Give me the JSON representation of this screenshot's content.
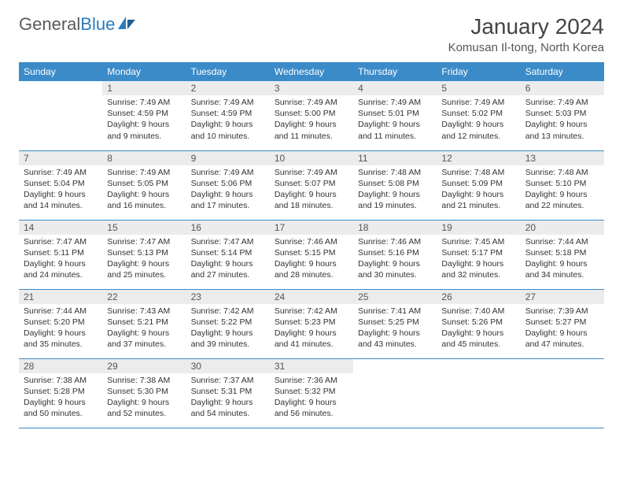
{
  "brand": {
    "part1": "General",
    "part2": "Blue"
  },
  "colors": {
    "header_bg": "#3b8bc9",
    "header_text": "#ffffff",
    "daynum_bg": "#ececec",
    "border": "#3b8bc9",
    "brand_gray": "#5a5a5a",
    "brand_blue": "#2b7bbf"
  },
  "title": "January 2024",
  "location": "Komusan Il-tong, North Korea",
  "weekdays": [
    "Sunday",
    "Monday",
    "Tuesday",
    "Wednesday",
    "Thursday",
    "Friday",
    "Saturday"
  ],
  "labels": {
    "sunrise": "Sunrise:",
    "sunset": "Sunset:",
    "daylight": "Daylight:"
  },
  "weeks": [
    [
      null,
      {
        "n": "1",
        "sr": "7:49 AM",
        "ss": "4:59 PM",
        "dl": "9 hours and 9 minutes."
      },
      {
        "n": "2",
        "sr": "7:49 AM",
        "ss": "4:59 PM",
        "dl": "9 hours and 10 minutes."
      },
      {
        "n": "3",
        "sr": "7:49 AM",
        "ss": "5:00 PM",
        "dl": "9 hours and 11 minutes."
      },
      {
        "n": "4",
        "sr": "7:49 AM",
        "ss": "5:01 PM",
        "dl": "9 hours and 11 minutes."
      },
      {
        "n": "5",
        "sr": "7:49 AM",
        "ss": "5:02 PM",
        "dl": "9 hours and 12 minutes."
      },
      {
        "n": "6",
        "sr": "7:49 AM",
        "ss": "5:03 PM",
        "dl": "9 hours and 13 minutes."
      }
    ],
    [
      {
        "n": "7",
        "sr": "7:49 AM",
        "ss": "5:04 PM",
        "dl": "9 hours and 14 minutes."
      },
      {
        "n": "8",
        "sr": "7:49 AM",
        "ss": "5:05 PM",
        "dl": "9 hours and 16 minutes."
      },
      {
        "n": "9",
        "sr": "7:49 AM",
        "ss": "5:06 PM",
        "dl": "9 hours and 17 minutes."
      },
      {
        "n": "10",
        "sr": "7:49 AM",
        "ss": "5:07 PM",
        "dl": "9 hours and 18 minutes."
      },
      {
        "n": "11",
        "sr": "7:48 AM",
        "ss": "5:08 PM",
        "dl": "9 hours and 19 minutes."
      },
      {
        "n": "12",
        "sr": "7:48 AM",
        "ss": "5:09 PM",
        "dl": "9 hours and 21 minutes."
      },
      {
        "n": "13",
        "sr": "7:48 AM",
        "ss": "5:10 PM",
        "dl": "9 hours and 22 minutes."
      }
    ],
    [
      {
        "n": "14",
        "sr": "7:47 AM",
        "ss": "5:11 PM",
        "dl": "9 hours and 24 minutes."
      },
      {
        "n": "15",
        "sr": "7:47 AM",
        "ss": "5:13 PM",
        "dl": "9 hours and 25 minutes."
      },
      {
        "n": "16",
        "sr": "7:47 AM",
        "ss": "5:14 PM",
        "dl": "9 hours and 27 minutes."
      },
      {
        "n": "17",
        "sr": "7:46 AM",
        "ss": "5:15 PM",
        "dl": "9 hours and 28 minutes."
      },
      {
        "n": "18",
        "sr": "7:46 AM",
        "ss": "5:16 PM",
        "dl": "9 hours and 30 minutes."
      },
      {
        "n": "19",
        "sr": "7:45 AM",
        "ss": "5:17 PM",
        "dl": "9 hours and 32 minutes."
      },
      {
        "n": "20",
        "sr": "7:44 AM",
        "ss": "5:18 PM",
        "dl": "9 hours and 34 minutes."
      }
    ],
    [
      {
        "n": "21",
        "sr": "7:44 AM",
        "ss": "5:20 PM",
        "dl": "9 hours and 35 minutes."
      },
      {
        "n": "22",
        "sr": "7:43 AM",
        "ss": "5:21 PM",
        "dl": "9 hours and 37 minutes."
      },
      {
        "n": "23",
        "sr": "7:42 AM",
        "ss": "5:22 PM",
        "dl": "9 hours and 39 minutes."
      },
      {
        "n": "24",
        "sr": "7:42 AM",
        "ss": "5:23 PM",
        "dl": "9 hours and 41 minutes."
      },
      {
        "n": "25",
        "sr": "7:41 AM",
        "ss": "5:25 PM",
        "dl": "9 hours and 43 minutes."
      },
      {
        "n": "26",
        "sr": "7:40 AM",
        "ss": "5:26 PM",
        "dl": "9 hours and 45 minutes."
      },
      {
        "n": "27",
        "sr": "7:39 AM",
        "ss": "5:27 PM",
        "dl": "9 hours and 47 minutes."
      }
    ],
    [
      {
        "n": "28",
        "sr": "7:38 AM",
        "ss": "5:28 PM",
        "dl": "9 hours and 50 minutes."
      },
      {
        "n": "29",
        "sr": "7:38 AM",
        "ss": "5:30 PM",
        "dl": "9 hours and 52 minutes."
      },
      {
        "n": "30",
        "sr": "7:37 AM",
        "ss": "5:31 PM",
        "dl": "9 hours and 54 minutes."
      },
      {
        "n": "31",
        "sr": "7:36 AM",
        "ss": "5:32 PM",
        "dl": "9 hours and 56 minutes."
      },
      null,
      null,
      null
    ]
  ]
}
